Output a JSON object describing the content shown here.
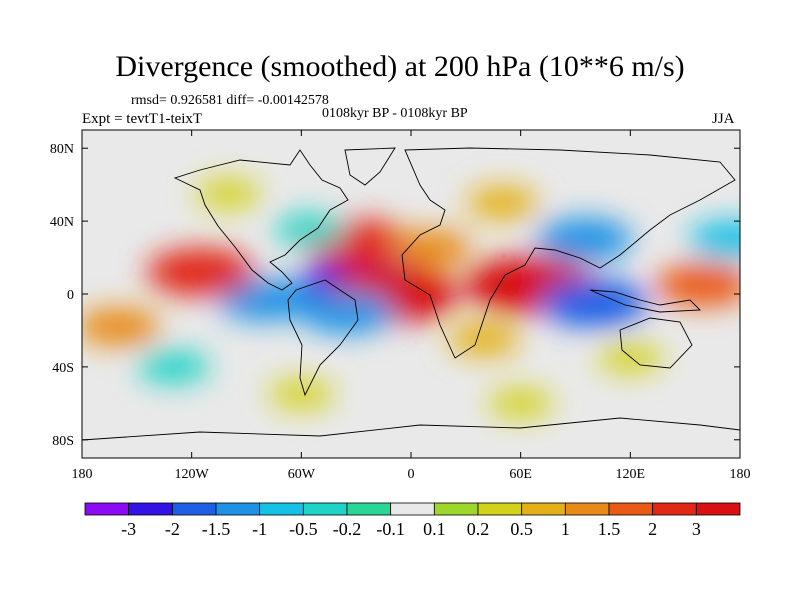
{
  "chart_data": {
    "type": "heatmap",
    "title": "Divergence (smoothed) at 200 hPa (10**6 m/s)",
    "stats_line": "rmsd= 0.926581 diff= -0.00142578",
    "center_label": "0108kyr BP - 0108kyr BP",
    "experiment_label": "Expt = tevtT1-teixT",
    "season_label": "JJA",
    "x_ticks": [
      {
        "label": "180",
        "lon": -180
      },
      {
        "label": "120W",
        "lon": -120
      },
      {
        "label": "60W",
        "lon": -60
      },
      {
        "label": "0",
        "lon": 0
      },
      {
        "label": "60E",
        "lon": 60
      },
      {
        "label": "120E",
        "lon": 120
      },
      {
        "label": "180",
        "lon": 180
      }
    ],
    "y_ticks": [
      {
        "label": "80N",
        "lat": 80
      },
      {
        "label": "40N",
        "lat": 40
      },
      {
        "label": "0",
        "lat": 0
      },
      {
        "label": "40S",
        "lat": -40
      },
      {
        "label": "80S",
        "lat": -80
      }
    ],
    "lon_range": [
      -180,
      180
    ],
    "lat_range": [
      -90,
      90
    ],
    "colorbar": {
      "labels": [
        "-3",
        "-2",
        "-1.5",
        "-1",
        "-0.5",
        "-0.2",
        "-0.1",
        "0.1",
        "0.2",
        "0.5",
        "1",
        "1.5",
        "2",
        "3"
      ],
      "colors": [
        "#8b0bf5",
        "#3212e6",
        "#1f5fe6",
        "#1e93e5",
        "#16c1e6",
        "#1fd3c6",
        "#2ad696",
        "#e9e9e9",
        "#9fd62a",
        "#d3d21b",
        "#e4b018",
        "#e88a17",
        "#ea5a15",
        "#e12812",
        "#d81010"
      ]
    },
    "field_blobs": [
      {
        "lon": -25,
        "lat": 5,
        "value": -3
      },
      {
        "lon": -10,
        "lat": 0,
        "value": 3
      },
      {
        "lon": -35,
        "lat": -10,
        "value": -1.5
      },
      {
        "lon": -80,
        "lat": -3,
        "value": -1.5
      },
      {
        "lon": -115,
        "lat": 12,
        "value": 2
      },
      {
        "lon": -160,
        "lat": -18,
        "value": 1
      },
      {
        "lon": -30,
        "lat": 28,
        "value": 2
      },
      {
        "lon": 10,
        "lat": 25,
        "value": 1
      },
      {
        "lon": 65,
        "lat": 5,
        "value": 3
      },
      {
        "lon": 100,
        "lat": -5,
        "value": -2
      },
      {
        "lon": 95,
        "lat": 30,
        "value": -1.5
      },
      {
        "lon": 160,
        "lat": 5,
        "value": 1.5
      },
      {
        "lon": 175,
        "lat": 30,
        "value": -1
      },
      {
        "lon": -55,
        "lat": 35,
        "value": -0.5
      },
      {
        "lon": -130,
        "lat": -40,
        "value": -0.5
      },
      {
        "lon": 40,
        "lat": -25,
        "value": 0.5
      },
      {
        "lon": 120,
        "lat": -35,
        "value": 0.2
      },
      {
        "lon": -100,
        "lat": 55,
        "value": 0.2
      },
      {
        "lon": 50,
        "lat": 50,
        "value": 0.5
      },
      {
        "lon": 60,
        "lat": -60,
        "value": 0.2
      },
      {
        "lon": -60,
        "lat": -55,
        "value": 0.2
      }
    ]
  },
  "colors": {
    "missing": "#e9e9e9",
    "land_outline": "#000000"
  }
}
